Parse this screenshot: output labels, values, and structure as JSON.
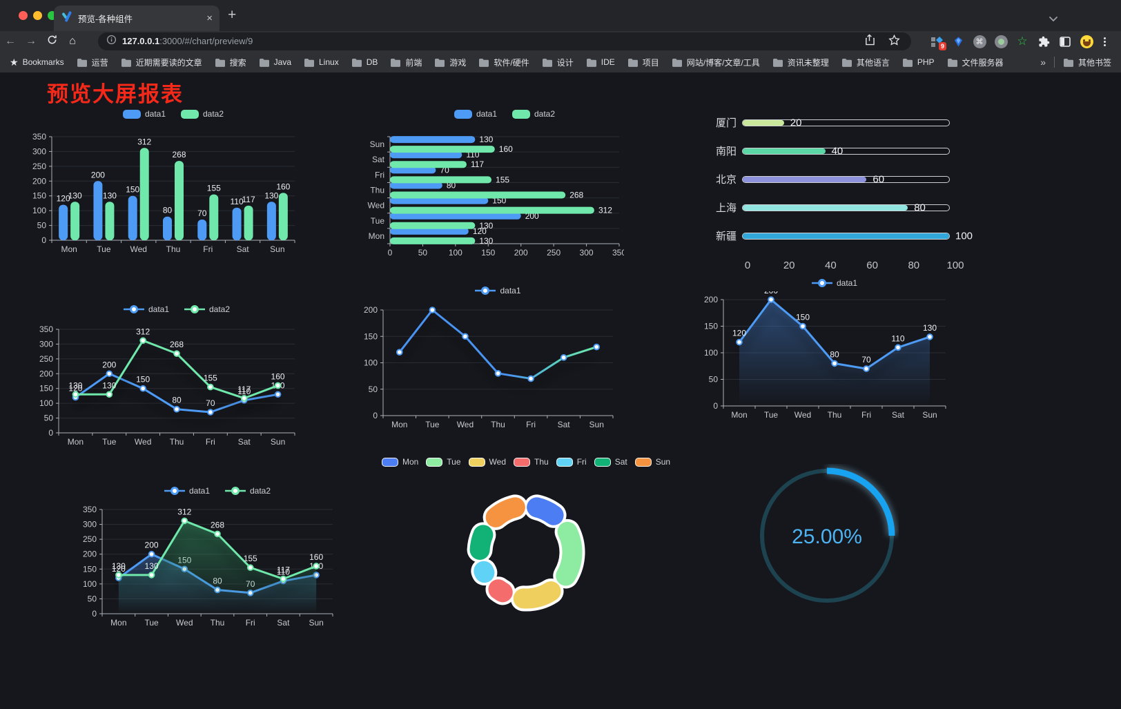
{
  "browser": {
    "tab": {
      "title": "预览-各种组件",
      "close_glyph": "×",
      "new_tab_glyph": "+"
    },
    "address": {
      "host": "127.0.0.1",
      "path": ":3000/#/chart/preview/9"
    },
    "extensions_badge": "9",
    "bookmarks": {
      "star_label": "Bookmarks",
      "folders": [
        "运营",
        "近期需要读的文章",
        "搜索",
        "Java",
        "Linux",
        "DB",
        "前端",
        "游戏",
        "软件/硬件",
        "设计",
        "IDE",
        "项目",
        "网站/博客/文章/工具",
        "资讯未整理",
        "其他语言",
        "PHP",
        "文件服务器"
      ],
      "overflow_glyph": "»",
      "other_label": "其他书签"
    }
  },
  "page": {
    "title": "预览大屏报表",
    "title_color": "#f5291a"
  },
  "chart_data": [
    {
      "id": "bar-vertical",
      "type": "bar",
      "categories": [
        "Mon",
        "Tue",
        "Wed",
        "Thu",
        "Fri",
        "Sat",
        "Sun"
      ],
      "series": [
        {
          "name": "data1",
          "color": "#4d9bf5",
          "values": [
            120,
            200,
            150,
            80,
            70,
            110,
            130
          ]
        },
        {
          "name": "data2",
          "color": "#70e8ab",
          "values": [
            130,
            130,
            312,
            268,
            155,
            117,
            160
          ]
        }
      ],
      "ylim": [
        0,
        350
      ],
      "ystep": 50,
      "show_labels": true,
      "legend_position": "top",
      "grid": true
    },
    {
      "id": "bar-horizontal",
      "type": "bar-horizontal",
      "categories": [
        "Mon",
        "Tue",
        "Wed",
        "Thu",
        "Fri",
        "Sat",
        "Sun"
      ],
      "series": [
        {
          "name": "data1",
          "color": "#4d9bf5",
          "values": [
            120,
            200,
            150,
            80,
            70,
            110,
            130
          ]
        },
        {
          "name": "data2",
          "color": "#70e8ab",
          "values": [
            130,
            130,
            312,
            268,
            155,
            117,
            160
          ]
        }
      ],
      "xlim": [
        0,
        350
      ],
      "xstep": 50,
      "show_labels": true,
      "legend_position": "top",
      "grid": true
    },
    {
      "id": "city-progress",
      "type": "progress",
      "max": 100,
      "items": [
        {
          "label": "厦门",
          "value": 20,
          "color": "#c9e89b"
        },
        {
          "label": "南阳",
          "value": 40,
          "color": "#5bd6a5"
        },
        {
          "label": "北京",
          "value": 60,
          "color": "#8e92dc"
        },
        {
          "label": "上海",
          "value": 80,
          "color": "#90e5e1"
        },
        {
          "label": "新疆",
          "value": 100,
          "color": "#32a7da"
        }
      ],
      "ticks": [
        0,
        20,
        40,
        60,
        80,
        100
      ]
    },
    {
      "id": "line-two-series",
      "type": "line",
      "categories": [
        "Mon",
        "Tue",
        "Wed",
        "Thu",
        "Fri",
        "Sat",
        "Sun"
      ],
      "series": [
        {
          "name": "data1",
          "color": "#4d9bf5",
          "values": [
            120,
            200,
            150,
            80,
            70,
            110,
            130
          ],
          "labels": true
        },
        {
          "name": "data2",
          "color": "#70e8ab",
          "values": [
            130,
            130,
            312,
            268,
            155,
            117,
            160
          ],
          "labels": true
        }
      ],
      "ylim": [
        0,
        350
      ],
      "ystep": 50
    },
    {
      "id": "line-gradient",
      "type": "line",
      "categories": [
        "Mon",
        "Tue",
        "Wed",
        "Thu",
        "Fri",
        "Sat",
        "Sun"
      ],
      "series": [
        {
          "name": "data1",
          "color": "#4d9bf5",
          "values": [
            120,
            200,
            150,
            80,
            70,
            110,
            130
          ],
          "labels": false,
          "stroke_gradient": {
            "stops": [
              "#4a93f2",
              "#4a93f2",
              "#57d0bf",
              "#70e8ab"
            ],
            "offsets": [
              0,
              0.55,
              0.8,
              1
            ]
          }
        }
      ],
      "ylim": [
        0,
        200
      ],
      "ystep": 50
    },
    {
      "id": "line-area",
      "type": "line",
      "categories": [
        "Mon",
        "Tue",
        "Wed",
        "Thu",
        "Fri",
        "Sat",
        "Sun"
      ],
      "series": [
        {
          "name": "data1",
          "color": "#4d9bf5",
          "values": [
            120,
            200,
            150,
            80,
            70,
            110,
            130
          ],
          "labels": true,
          "area": {
            "from": "rgba(64,118,192,0.55)",
            "to": "rgba(64,118,192,0)"
          }
        }
      ],
      "ylim": [
        0,
        200
      ],
      "ystep": 50
    },
    {
      "id": "area-two-series",
      "type": "line",
      "categories": [
        "Mon",
        "Tue",
        "Wed",
        "Thu",
        "Fri",
        "Sat",
        "Sun"
      ],
      "series": [
        {
          "name": "data1",
          "color": "#4d9bf5",
          "values": [
            120,
            200,
            150,
            80,
            70,
            110,
            130
          ],
          "labels": true,
          "area": {
            "from": "rgba(64,118,192,0.5)",
            "to": "rgba(64,118,192,0)"
          }
        },
        {
          "name": "data2",
          "color": "#70e8ab",
          "values": [
            130,
            130,
            312,
            268,
            155,
            117,
            160
          ],
          "labels": true,
          "area": {
            "from": "rgba(52,150,100,0.55)",
            "to": "rgba(52,150,100,0)"
          }
        }
      ],
      "ylim": [
        0,
        350
      ],
      "ystep": 50
    },
    {
      "id": "weekday-donut",
      "type": "pie",
      "legend": [
        "Mon",
        "Tue",
        "Wed",
        "Thu",
        "Fri",
        "Sat",
        "Sun"
      ],
      "values": [
        120,
        200,
        150,
        80,
        70,
        110,
        130
      ],
      "colors": [
        "#4d7df2",
        "#8eeca2",
        "#efd05e",
        "#f56c6c",
        "#5fd2f5",
        "#12b277",
        "#f59340"
      ]
    },
    {
      "id": "percent-gauge",
      "type": "gauge",
      "percent": 25,
      "label": "25.00%",
      "arc_color": "#17a3f0",
      "track_color": "#1d4350",
      "text_color": "#4db3f2"
    }
  ]
}
